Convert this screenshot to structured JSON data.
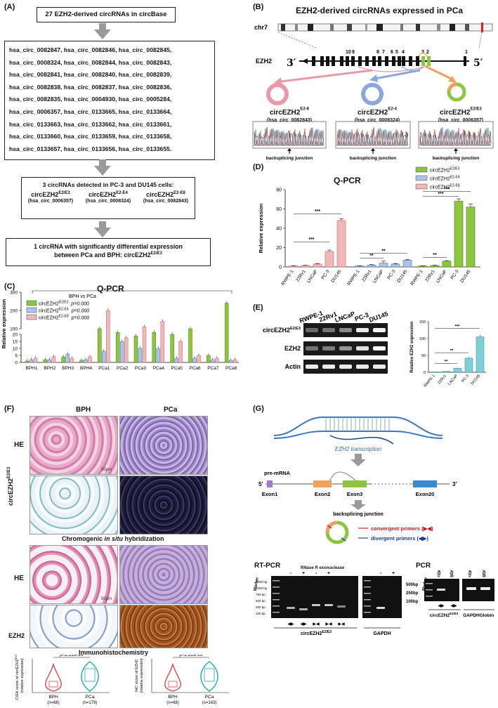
{
  "panels": {
    "A": {
      "label": "(A)",
      "step1": "27 EZH2-derived circRNAs in circBase",
      "ids": [
        "hsa_circ_0082847, hsa_circ_0082846, hsa_circ_0082845,",
        "hsa_circ_0008324, hsa_circ_0082844, hsa_circ_0082843,",
        "hsa_circ_0082841, hsa_circ_0082840, hsa_circ_0082839,",
        "hsa_circ_0082838, hsa_circ_0082837, hsa_circ_0082836,",
        "hsa_circ_0082835, hsa_circ_0004930, hsa_circ_0005284,",
        "hsa_circ_0006357, hsa_circ_0133665, hsa_circ_0133664,",
        "hsa_circ_0133663, hsa_circ_0133662, hsa_circ_0133661,",
        "hsa_circ_0133660, hsa_circ_0133659, hsa_circ_0133658,",
        "hsa_circ_0133657, hsa_circ_0133656, hsa_circ_0133655."
      ],
      "step3_title": "3 circRNAs detected in PC-3 and DU145 cells:",
      "step3_items": [
        {
          "name": "circEZH2",
          "sup": "E2/E3",
          "id": "(hsa_circ_0006357)"
        },
        {
          "name": "circEZH2",
          "sup": "E2-E4",
          "id": "(hsa_circ_0008324)"
        },
        {
          "name": "circEZH2",
          "sup": "E2-E8",
          "id": "(hsa_circ_0082843)"
        }
      ],
      "step4_line1": "1 circRNA with significantly differential expression",
      "step4_line2": "between PCa and BPH: circEZH2",
      "step4_sup": "E2/E3"
    },
    "B": {
      "label": "(B)",
      "title": "EZH2-derived circRNAs expressed in PCa",
      "chrom": "chr7",
      "gene": "EZH2",
      "end3": "3′",
      "end5": "5′",
      "exon_nums": [
        "10",
        "9",
        "8",
        "7",
        "6",
        "5",
        "4",
        "3",
        "2",
        "1"
      ],
      "circs": [
        {
          "name": "circEZH2",
          "sup": "E2-8",
          "id": "(hsa_circ_0082843)",
          "color": "#e89aa8"
        },
        {
          "name": "circEZH2",
          "sup": "E2-4",
          "id": "(hsa_circ_0008324)",
          "color": "#8aa8d8"
        },
        {
          "name": "circEZH2",
          "sup": "E2/E3",
          "id": "(hsa_circ_0006357)",
          "color": "#8cc63f"
        }
      ],
      "junction": "backsplicing junction"
    },
    "D": {
      "label": "(D)",
      "title": "Q-PCR",
      "ylabel": "Relative expression",
      "legend": [
        {
          "name": "circEZH2",
          "sup": "E2/E3",
          "color": "#8cc63f"
        },
        {
          "name": "circEZH2",
          "sup": "E2-E4",
          "color": "#a9c4e8"
        },
        {
          "name": "circEZH2",
          "sup": "E2-E8",
          "color": "#f2b8b8"
        }
      ],
      "sig": [
        "***",
        "***",
        "**",
        "**",
        "**",
        "***",
        "***"
      ]
    },
    "C": {
      "label": "(C)",
      "title": "Q-PCR",
      "ylabel": "Relative expression",
      "legend_title": "BPH vs PCa",
      "legend": [
        {
          "name": "circEZH2",
          "sup": "E2/E3",
          "p": "p=0.000",
          "color": "#8cc63f"
        },
        {
          "name": "circEZH2",
          "sup": "E2-E4",
          "p": "p=0.000",
          "color": "#a9c4e8"
        },
        {
          "name": "circEZH2",
          "sup": "E2-E8",
          "p": "p=0.000",
          "color": "#f2b8b8"
        }
      ]
    },
    "E": {
      "label": "(E)",
      "lanes": [
        "RWPE-1",
        "22Rv1",
        "LNCaP",
        "PC-3",
        "DU145"
      ],
      "rows": [
        {
          "name": "circEZH2",
          "sup": "E2/E3"
        },
        {
          "name": "EZH2",
          "sup": ""
        },
        {
          "name": "Actin",
          "sup": ""
        }
      ],
      "ylabel": "Relative EZH2 expression",
      "sig": [
        "***",
        "**",
        "**"
      ]
    },
    "F": {
      "label": "(F)",
      "col1": "BPH",
      "col2": "PCa",
      "row_he": "HE",
      "row_cish": "circEZH2",
      "row_cish_sup": "E2/E3",
      "cish_caption1": "Chromogenic ",
      "cish_caption2": "in situ",
      "cish_caption3": " hybridization",
      "row_ezh2": "EZH2",
      "ihc_caption": "Immunohistochemistry",
      "scale": "50μm",
      "violin1_ylabel": "CISH score of circEZH2",
      "violin1_ylabel_sup": "E2/E3",
      "violin1_ylabel2": "(relative expression)",
      "violin2_ylabel": "IHC score of EZH2",
      "violin2_ylabel2": "(relative expression)",
      "p1": "p<2.22e-16",
      "p2": "p<2.22e-16",
      "v1_groups": [
        {
          "name": "BPH",
          "n": "(n=68)"
        },
        {
          "name": "PCa",
          "n": "(n=179)"
        }
      ],
      "v2_groups": [
        {
          "name": "BPH",
          "n": "(n=68)"
        },
        {
          "name": "PCa",
          "n": "(n=163)"
        }
      ]
    },
    "G": {
      "label": "(G)",
      "transcription": "EZH2 transcription",
      "premrna": "pre-mRNA",
      "end5": "5′",
      "end3": "3′",
      "exons": [
        "Exon1",
        "Exon2",
        "Exon3",
        "Exon20"
      ],
      "junction": "backsplicing junction",
      "convergent": "convergent primers (▶◀)",
      "divergent": "divergent primers (◀▶)",
      "rtpcr_title": "RT-PCR",
      "pcr_title": "PCR",
      "rnase": "RNase R exonuclease",
      "marker": "Marker",
      "signs": [
        "-",
        "+",
        "-",
        "+",
        "-",
        "+"
      ],
      "ladder": [
        "2000 bp",
        "1000 bp",
        "750 bp",
        "500 bp",
        "250 bp",
        "100 bp"
      ],
      "ladder2": [
        "500bp",
        "250bp",
        "100bp"
      ],
      "rt_gene1": "circEZH2",
      "rt_gene1_sup": "E2/E3",
      "rt_gene2": "GAPDH",
      "pcr_lanes": [
        "cDNA",
        "gDNA",
        "cDNA",
        "gDNA"
      ],
      "pcr_gene1": "circEZH2",
      "pcr_gene1_sup": "E2/E3",
      "pcr_gene2": "GAPDH",
      "pcr_gene3": "Globin"
    }
  },
  "chart_data": [
    {
      "type": "bar",
      "panel": "D",
      "title": "Q-PCR",
      "ylabel": "Relative expression",
      "ylim": [
        0,
        80
      ],
      "yticks": [
        0,
        20,
        40,
        60,
        80
      ],
      "groups": [
        {
          "series": "circEZH2 E2-E8",
          "categories": [
            "RWPE-1",
            "22Rv1",
            "LNCaP",
            "PC-3",
            "DU145"
          ],
          "values": [
            1,
            1.5,
            3,
            16,
            48
          ],
          "errors": [
            0.3,
            0.3,
            0.5,
            1.5,
            2
          ]
        },
        {
          "series": "circEZH2 E2-E4",
          "categories": [
            "RWPE-1",
            "22Rv1",
            "LNCaP",
            "PC-3",
            "DU145"
          ],
          "values": [
            1,
            2,
            4,
            3,
            7
          ],
          "errors": [
            0.3,
            0.5,
            2,
            0.5,
            0.8
          ]
        },
        {
          "series": "circEZH2 E2/E3",
          "categories": [
            "RWPE-1",
            "22Rv1",
            "LNCaP",
            "PC-3",
            "DU145"
          ],
          "values": [
            1,
            1.5,
            6,
            68,
            62
          ],
          "errors": [
            0.2,
            0.3,
            0.5,
            2.5,
            3
          ]
        }
      ]
    },
    {
      "type": "bar",
      "panel": "C",
      "title": "Q-PCR",
      "ylabel": "Relative expression",
      "yticks": [
        0,
        5,
        10,
        15,
        20,
        100,
        200,
        300
      ],
      "categories": [
        "BPH1",
        "BPH2",
        "BPH3",
        "BPH4",
        "PCa1",
        "PCa2",
        "PCa3",
        "PCa4",
        "PCa5",
        "PCa6",
        "PCa7",
        "PCa8"
      ],
      "series": [
        {
          "name": "circEZH2 E2/E3",
          "values": [
            1,
            2,
            4,
            1.5,
            100,
            80,
            60,
            80,
            20,
            100,
            5,
            240
          ]
        },
        {
          "name": "circEZH2 E2-E4",
          "values": [
            2,
            2,
            6,
            2,
            8,
            30,
            10,
            10,
            3,
            3,
            2,
            1.5
          ]
        },
        {
          "name": "circEZH2 E2-E8",
          "values": [
            3,
            4,
            3,
            4,
            200,
            50,
            110,
            140,
            15,
            5,
            3,
            2
          ]
        }
      ]
    },
    {
      "type": "bar",
      "panel": "E",
      "ylabel": "Relative EZH2 expression",
      "ylim": [
        0,
        150
      ],
      "yticks": [
        0,
        50,
        100,
        150
      ],
      "categories": [
        "RWPE-1",
        "22Rv1",
        "LNCaP",
        "PC-3",
        "DU145"
      ],
      "values": [
        1,
        3,
        12,
        42,
        105
      ],
      "errors": [
        0.5,
        0.5,
        1.5,
        3,
        6
      ]
    }
  ]
}
